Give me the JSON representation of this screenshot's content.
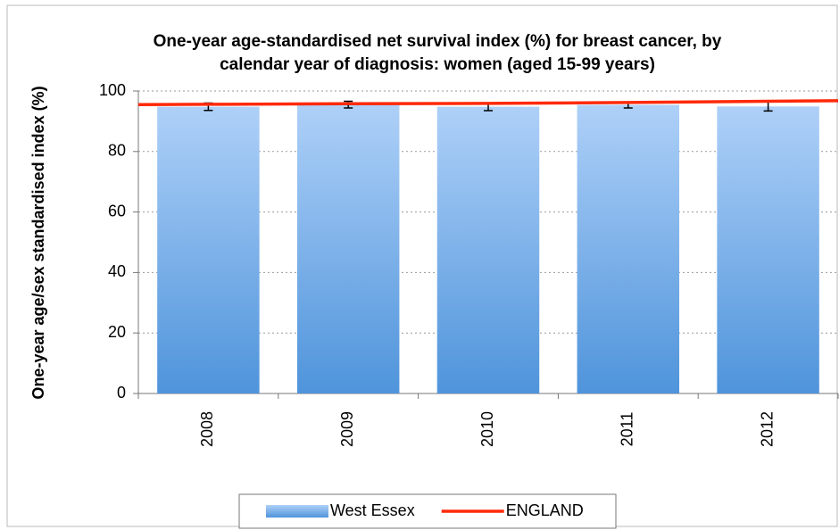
{
  "chart_data": {
    "type": "bar",
    "title": "One-year age-standardised net survival index (%) for breast cancer, by calendar year of diagnosis: women (aged 15-99 years)",
    "y_label": "One-year age/sex standardised index (%)",
    "categories": [
      "2008",
      "2009",
      "2010",
      "2011",
      "2012"
    ],
    "series": [
      {
        "name": "West Essex",
        "type": "bar",
        "color": "#4f94db",
        "values": [
          94.8,
          95.5,
          94.8,
          95.4,
          94.9
        ],
        "errors": [
          1.2,
          1.1,
          1.3,
          1.0,
          1.5
        ]
      },
      {
        "name": "ENGLAND",
        "type": "line",
        "color": "#ff2a0a",
        "values": [
          95.6,
          95.8,
          95.9,
          96.2,
          96.6
        ]
      }
    ],
    "ylim": [
      0,
      100
    ],
    "yticks": [
      0,
      20,
      40,
      60,
      80,
      100
    ],
    "grid": true,
    "legend": "bottom"
  }
}
